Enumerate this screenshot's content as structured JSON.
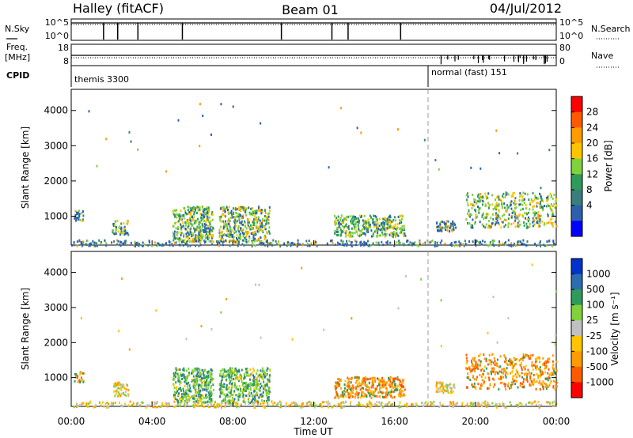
{
  "header": {
    "left": "Halley (fitACF)",
    "center": "Beam 01",
    "right": "04/Jul/2012"
  },
  "top_panel": {
    "left_label": "N.Sky",
    "right_label": "N.Search",
    "ticks_left": [
      "10^5",
      "10^0"
    ],
    "ticks_right": [
      "10^5",
      "10^0"
    ]
  },
  "freq_panel": {
    "label_line1": "Freq.",
    "label_line2": "[MHz]",
    "right_label": "Nave",
    "ticks_left": [
      "18",
      "8"
    ],
    "ticks_right": [
      "80",
      "0"
    ]
  },
  "cpid": {
    "label": "CPID",
    "segments": [
      {
        "text": "themis 3300",
        "start_hour": 0
      },
      {
        "text": "normal (fast) 151",
        "start_hour": 18
      }
    ]
  },
  "x_axis": {
    "label": "Time UT",
    "ticks": [
      "00:00",
      "04:00",
      "08:00",
      "12:00",
      "16:00",
      "20:00",
      "00:00"
    ],
    "range_hours": [
      0,
      24
    ]
  },
  "chart_data": [
    {
      "type": "heatmap",
      "title": "",
      "xlabel": "Time UT",
      "ylabel": "Slant Range [km]",
      "ylim": [
        180,
        4600
      ],
      "xlim_hours": [
        0,
        24
      ],
      "yticks": [
        1000,
        2000,
        3000,
        4000
      ],
      "colorbar": {
        "label": "Power [dB]",
        "ticks": [
          "28",
          "24",
          "20",
          "16",
          "12",
          "8",
          "4"
        ],
        "colors": [
          "#ff0000",
          "#ff5a00",
          "#ff9a00",
          "#ffc400",
          "#7fd23a",
          "#2e9b5a",
          "#3a7d7d",
          "#2d5fae",
          "#0000ff"
        ]
      },
      "regions": [
        {
          "x": [
            0.1,
            0.6
          ],
          "y": [
            900,
            1200
          ],
          "level": "low"
        },
        {
          "x": [
            2.0,
            2.8
          ],
          "y": [
            500,
            900
          ],
          "level": "mid"
        },
        {
          "x": [
            5.0,
            7.0
          ],
          "y": [
            300,
            1300
          ],
          "level": "mid"
        },
        {
          "x": [
            7.3,
            9.8
          ],
          "y": [
            300,
            1300
          ],
          "level": "high"
        },
        {
          "x": [
            13.0,
            16.5
          ],
          "y": [
            450,
            1050
          ],
          "level": "mid"
        },
        {
          "x": [
            18.0,
            19.0
          ],
          "y": [
            600,
            900
          ],
          "level": "low"
        },
        {
          "x": [
            19.5,
            24.0
          ],
          "y": [
            700,
            1700
          ],
          "level": "high"
        },
        {
          "x": [
            0.0,
            24.0
          ],
          "y": [
            180,
            350
          ],
          "level": "low"
        }
      ]
    },
    {
      "type": "heatmap",
      "title": "",
      "xlabel": "Time UT",
      "ylabel": "Slant Range [km]",
      "ylim": [
        180,
        4600
      ],
      "xlim_hours": [
        0,
        24
      ],
      "yticks": [
        1000,
        2000,
        3000,
        4000
      ],
      "colorbar": {
        "label": "Velocity [m s⁻¹]",
        "ticks": [
          "1000",
          "500",
          "100",
          "25",
          "-25",
          "-100",
          "-500",
          "-1000"
        ],
        "colors": [
          "#0033cc",
          "#2a6db0",
          "#2e9b5a",
          "#7fd23a",
          "#c0c0c0",
          "#ffc400",
          "#ff9a00",
          "#ff5a00",
          "#ff0000"
        ]
      },
      "regions": [
        {
          "x": [
            0.1,
            0.6
          ],
          "y": [
            900,
            1200
          ],
          "level": "neg"
        },
        {
          "x": [
            2.0,
            2.8
          ],
          "y": [
            500,
            900
          ],
          "level": "mix"
        },
        {
          "x": [
            5.0,
            7.0
          ],
          "y": [
            300,
            1300
          ],
          "level": "pos"
        },
        {
          "x": [
            7.3,
            9.8
          ],
          "y": [
            300,
            1300
          ],
          "level": "pos"
        },
        {
          "x": [
            13.0,
            16.5
          ],
          "y": [
            450,
            1050
          ],
          "level": "neg"
        },
        {
          "x": [
            18.0,
            19.0
          ],
          "y": [
            600,
            900
          ],
          "level": "mix"
        },
        {
          "x": [
            19.5,
            24.0
          ],
          "y": [
            700,
            1700
          ],
          "level": "neg"
        },
        {
          "x": [
            0.0,
            24.0
          ],
          "y": [
            180,
            350
          ],
          "level": "mix"
        }
      ]
    }
  ]
}
